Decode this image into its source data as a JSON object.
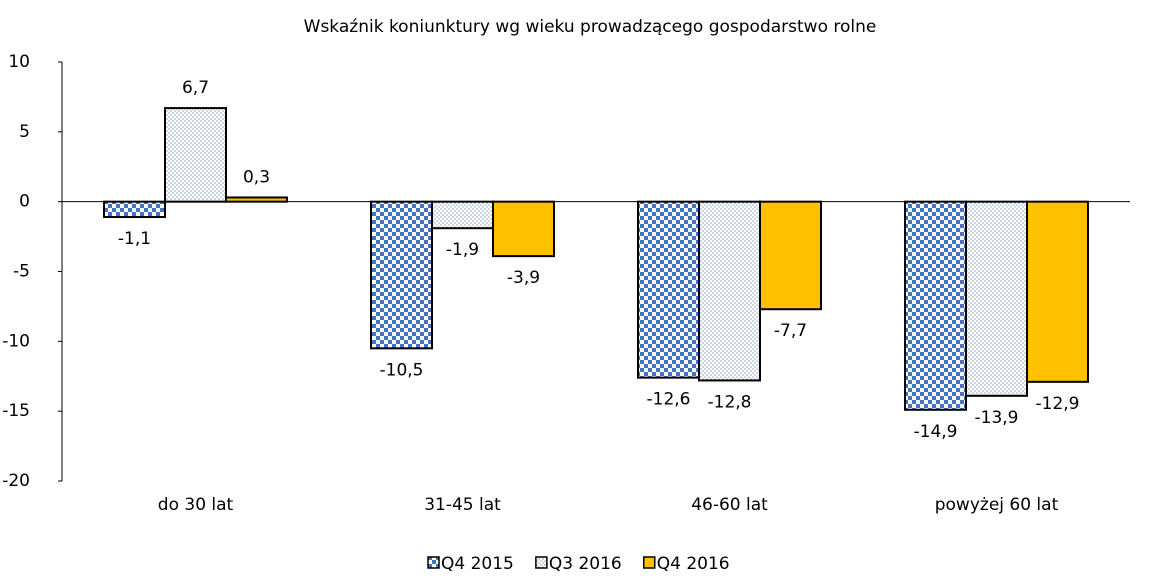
{
  "chart_data": {
    "type": "bar",
    "title": "Wskaźnik koniunktury wg wieku prowadzącego gospodarstwo rolne",
    "categories": [
      "do 30 lat",
      "31-45 lat",
      "46-60 lat",
      "powyżej 60 lat"
    ],
    "series": [
      {
        "name": "Q4 2015",
        "color": "#4472c4",
        "pattern": "checker",
        "values": [
          -1.1,
          -10.5,
          -12.6,
          -14.9
        ],
        "value_labels": [
          "-1,1",
          "-10,5",
          "-12,6",
          "-14,9"
        ]
      },
      {
        "name": "Q3 2016",
        "color": "#8fa6c8",
        "pattern": "dots",
        "values": [
          6.7,
          -1.9,
          -12.8,
          -13.9
        ],
        "value_labels": [
          "6,7",
          "-1,9",
          "-12,8",
          "-13,9"
        ]
      },
      {
        "name": "Q4 2016",
        "color": "#ffc000",
        "pattern": "solid",
        "values": [
          0.3,
          -3.9,
          -7.7,
          -12.9
        ],
        "value_labels": [
          "0,3",
          "-3,9",
          "-7,7",
          "-12,9"
        ]
      }
    ],
    "ylim": [
      -20,
      10
    ],
    "yticks": [
      -20,
      -15,
      -10,
      -5,
      0,
      5,
      10
    ],
    "grid": false,
    "legend": "bottom"
  }
}
